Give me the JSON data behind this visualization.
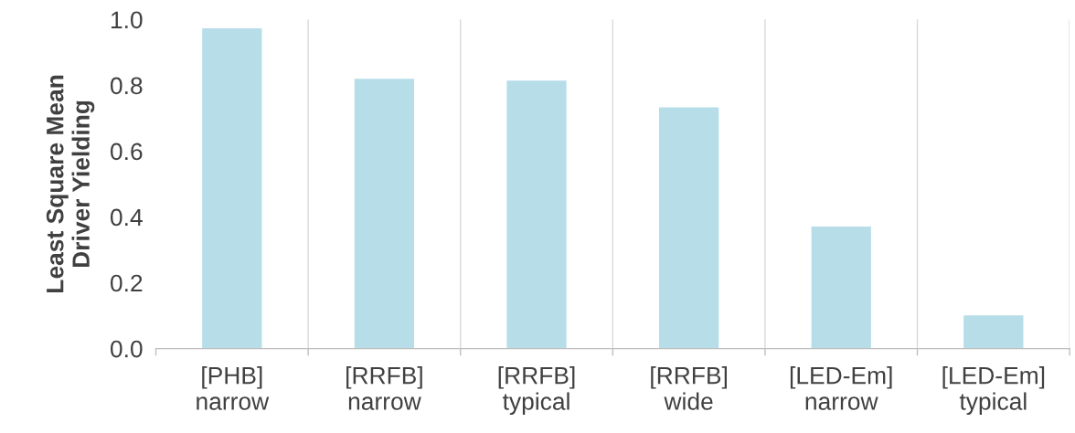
{
  "chart_data": {
    "type": "bar",
    "ylabel": "Least Square Mean\nDriver Yielding",
    "categories": [
      "[PHB]\nnarrow",
      "[RRFB]\nnarrow",
      "[RRFB]\ntypical",
      "[RRFB]\nwide",
      "[LED-Em]\nnarrow",
      "[LED-Em]\ntypical"
    ],
    "values": [
      0.975,
      0.822,
      0.816,
      0.735,
      0.373,
      0.103
    ],
    "color": "#b6dde8",
    "ylim": [
      0,
      1.0
    ],
    "yticks": [
      {
        "value": 0,
        "label": "0.0"
      },
      {
        "value": 0.2,
        "label": "0.2"
      },
      {
        "value": 0.4,
        "label": "0.4"
      },
      {
        "value": 0.6,
        "label": "0.6"
      },
      {
        "value": 0.8,
        "label": "0.8"
      },
      {
        "value": 1.0,
        "label": "1.0"
      }
    ],
    "grid": "x"
  }
}
